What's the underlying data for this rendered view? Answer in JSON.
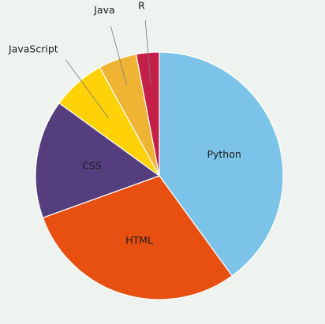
{
  "chart_data": {
    "type": "pie",
    "start_angle_deg": 0,
    "direction": "clockwise",
    "slice_border_color": "#ffffff",
    "slices": [
      {
        "label": "Python",
        "value": 40.0,
        "color": "#7bc3e8"
      },
      {
        "label": "HTML",
        "value": 29.5,
        "color": "#e85012"
      },
      {
        "label": "CSS",
        "value": 15.5,
        "color": "#553e7d"
      },
      {
        "label": "JavaScript",
        "value": 7.0,
        "color": "#ffd208"
      },
      {
        "label": "Java",
        "value": 5.0,
        "color": "#f0b435"
      },
      {
        "label": "R",
        "value": 3.0,
        "color": "#c41f47"
      }
    ]
  }
}
